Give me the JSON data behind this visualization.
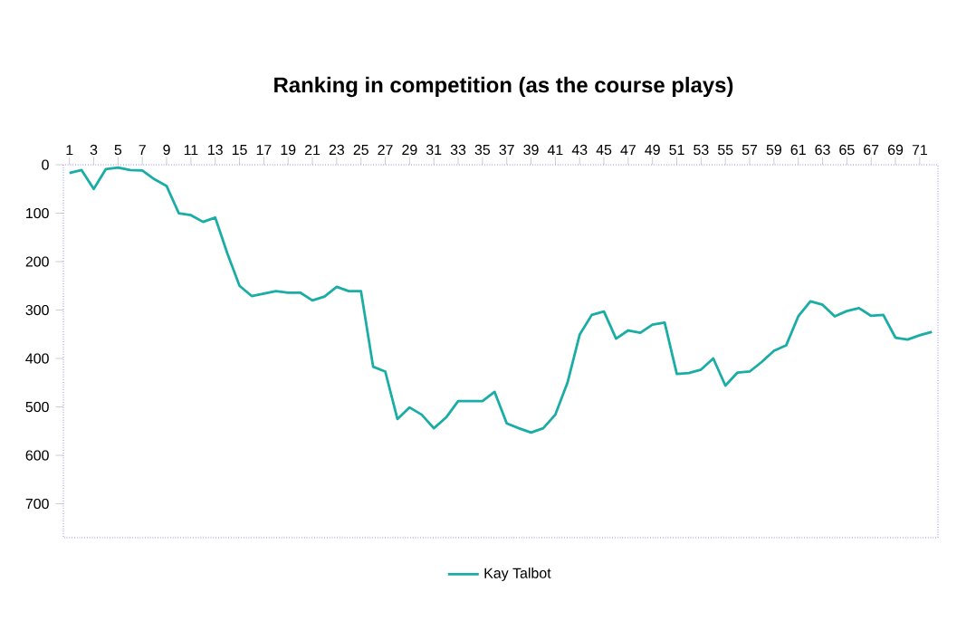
{
  "chart_data": {
    "type": "line",
    "title": "Ranking in competition (as the course plays)",
    "categories": [
      "1",
      null,
      "3",
      null,
      "5",
      null,
      "7",
      null,
      "9",
      null,
      "11",
      null,
      "13",
      null,
      "15",
      null,
      "17",
      null,
      "19",
      null,
      "21",
      null,
      "23",
      null,
      "25",
      null,
      "27",
      null,
      "29",
      null,
      "31",
      null,
      "33",
      null,
      "35",
      null,
      "37",
      null,
      "39",
      null,
      "41",
      null,
      "43",
      null,
      "45",
      null,
      "47",
      null,
      "49",
      null,
      "51",
      null,
      "53",
      null,
      "55",
      null,
      "57",
      null,
      "59",
      null,
      "61",
      null,
      "63",
      null,
      "65",
      null,
      "67",
      null,
      "69",
      null,
      "71",
      null
    ],
    "series": [
      {
        "name": "Kay Talbot",
        "color": "#1aada6",
        "values": [
          17,
          11,
          50,
          9,
          6,
          11,
          12,
          30,
          44,
          100,
          104,
          118,
          109,
          183,
          250,
          271,
          266,
          261,
          264,
          264,
          280,
          272,
          252,
          261,
          261,
          417,
          427,
          525,
          501,
          516,
          544,
          522,
          488,
          488,
          488,
          469,
          534,
          544,
          553,
          544,
          516,
          450,
          351,
          310,
          303,
          359,
          342,
          347,
          330,
          326,
          432,
          430,
          423,
          400,
          456,
          429,
          427,
          407,
          384,
          373,
          313,
          282,
          289,
          313,
          302,
          296,
          312,
          310,
          357,
          361,
          352,
          345
        ]
      }
    ],
    "ylim": [
      770,
      0
    ],
    "yticks": [
      0,
      100,
      200,
      300,
      400,
      500,
      600,
      700
    ],
    "grid": false,
    "legend": "bottom",
    "marker": "none",
    "line_style": "solid"
  }
}
